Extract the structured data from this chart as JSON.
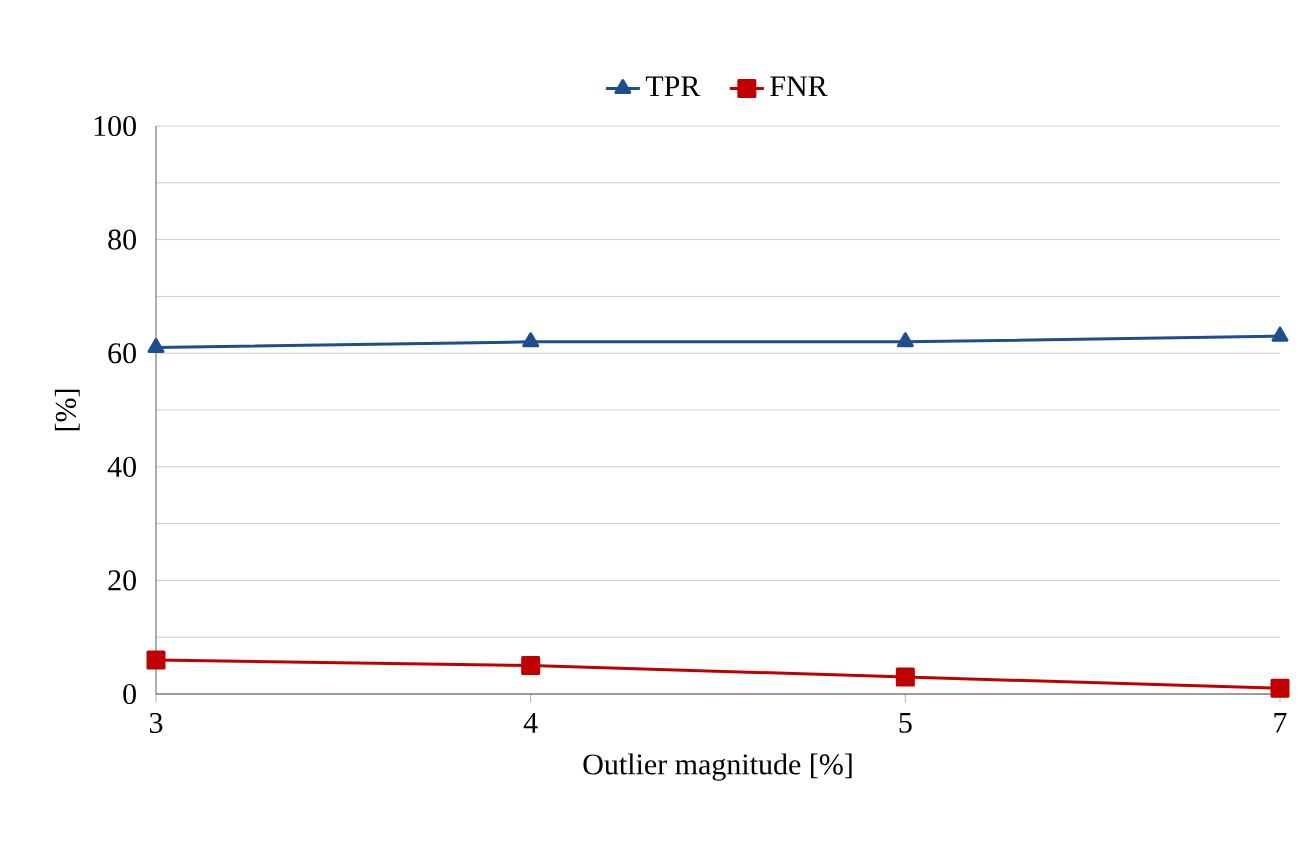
{
  "chart_data": {
    "type": "line",
    "xlabel": "Outlier magnitude [%]",
    "ylabel": "[%]",
    "categories": [
      "3",
      "4",
      "5",
      "7"
    ],
    "series": [
      {
        "name": "TPR",
        "color": "#1f4e8c",
        "marker": "triangle",
        "values": [
          61,
          62,
          62,
          63
        ]
      },
      {
        "name": "FNR",
        "color": "#c00000",
        "marker": "square",
        "values": [
          6,
          5,
          3,
          1
        ]
      }
    ],
    "ylim": [
      0,
      100
    ],
    "yticks": [
      0,
      {
        "value": 10,
        "label": null
      },
      20,
      {
        "value": 30,
        "label": null
      },
      40,
      {
        "value": 50,
        "label": null
      },
      60,
      {
        "value": 70,
        "label": null
      },
      80,
      {
        "value": 90,
        "label": null
      },
      100
    ],
    "grid": "y",
    "legend": "top"
  }
}
